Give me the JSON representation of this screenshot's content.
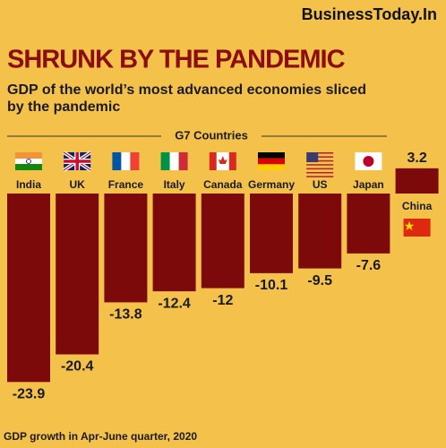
{
  "brand": "BusinessToday.In",
  "chart_data": {
    "type": "bar",
    "title": "SHRUNK BY THE PANDEMIC",
    "subtitle": [
      "GDP of the world’s most advanced economies sliced",
      "by the pandemic"
    ],
    "group_label": "G7 Countries",
    "categories": [
      "India",
      "UK",
      "France",
      "Italy",
      "Canada",
      "Germany",
      "US",
      "Japan",
      "China"
    ],
    "values": [
      -23.9,
      -20.4,
      -13.8,
      -12.4,
      -12,
      -10.1,
      -9.5,
      -7.6,
      3.2
    ],
    "color": "#7d0a0a",
    "footnote": "GDP growth in Apr-June quarter, 2020"
  }
}
